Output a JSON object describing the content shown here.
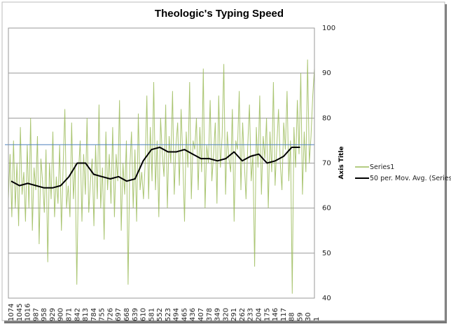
{
  "chart_data": {
    "type": "line",
    "title": "Theologic's Typing Speed",
    "xlabel": "",
    "ylabel": "Axis Title",
    "y_axis_position": "right",
    "ylim": [
      40,
      100
    ],
    "yticks": [
      "40",
      "50",
      "60",
      "70",
      "80",
      "90",
      "100"
    ],
    "x_categories_range": [
      1074,
      1
    ],
    "xticks": [
      "1074",
      "1045",
      "1016",
      "987",
      "958",
      "929",
      "900",
      "871",
      "842",
      "813",
      "784",
      "755",
      "726",
      "697",
      "668",
      "639",
      "610",
      "581",
      "552",
      "523",
      "494",
      "465",
      "436",
      "407",
      "378",
      "349",
      "320",
      "291",
      "262",
      "233",
      "204",
      "175",
      "146",
      "117",
      "88",
      "59",
      "30",
      "1"
    ],
    "grid": true,
    "legend_position": "right",
    "reference_line": 74.1,
    "series": [
      {
        "name": "Series1",
        "color": "#9bbb59",
        "note_sampled": true,
        "values": [
          62,
          72,
          58,
          75,
          60,
          70,
          56,
          78,
          63,
          68,
          57,
          74,
          60,
          80,
          55,
          69,
          64,
          76,
          52,
          71,
          66,
          59,
          73,
          48,
          70,
          62,
          77,
          58,
          67,
          61,
          74,
          55,
          69,
          82,
          60,
          65,
          58,
          79,
          62,
          70,
          43,
          68,
          75,
          57,
          72,
          63,
          80,
          59,
          66,
          71,
          56,
          74,
          62,
          83,
          60,
          69,
          53,
          77,
          64,
          72,
          61,
          78,
          58,
          72,
          66,
          84,
          55,
          70,
          63,
          75,
          43,
          69,
          77,
          60,
          73,
          57,
          81,
          64,
          68,
          62,
          70,
          85,
          62,
          78,
          66,
          88,
          64,
          75,
          58,
          80,
          72,
          67,
          83,
          60,
          76,
          70,
          86,
          63,
          74,
          79,
          65,
          82,
          71,
          57,
          77,
          69,
          88,
          62,
          75,
          73,
          80,
          64,
          78,
          68,
          91,
          60,
          74,
          70,
          84,
          66,
          72,
          79,
          61,
          85,
          69,
          76,
          92,
          63,
          77,
          71,
          68,
          82,
          57,
          75,
          73,
          86,
          64,
          79,
          70,
          62,
          74,
          83,
          66,
          72,
          47,
          78,
          69,
          85,
          63,
          76,
          71,
          80,
          60,
          77,
          68,
          88,
          65,
          74,
          82,
          70,
          64,
          79,
          73,
          86,
          66,
          75,
          41,
          78,
          69,
          84,
          72,
          90,
          63,
          77,
          68,
          93,
          70,
          76,
          85,
          91
        ]
      },
      {
        "name": "50 per. Mov. Avg. (Series1)",
        "color": "#000000",
        "x": [
          1074,
          1045,
          1016,
          987,
          958,
          929,
          900,
          871,
          842,
          813,
          784,
          755,
          726,
          697,
          668,
          639,
          610,
          581,
          552,
          523,
          494,
          465,
          436,
          407,
          378,
          349,
          320,
          291,
          262,
          233,
          204,
          175,
          146,
          117,
          88,
          59
        ],
        "values": [
          66,
          65,
          65.5,
          65,
          64.5,
          64.5,
          65,
          67,
          70,
          70,
          67.5,
          67,
          66.5,
          67,
          66,
          66.5,
          70.5,
          73,
          73.5,
          72.5,
          72.5,
          73,
          72,
          71,
          71,
          70.5,
          71,
          72.5,
          70.5,
          71.5,
          72,
          70,
          70.5,
          71.5,
          73.5,
          73.5
        ]
      }
    ]
  }
}
